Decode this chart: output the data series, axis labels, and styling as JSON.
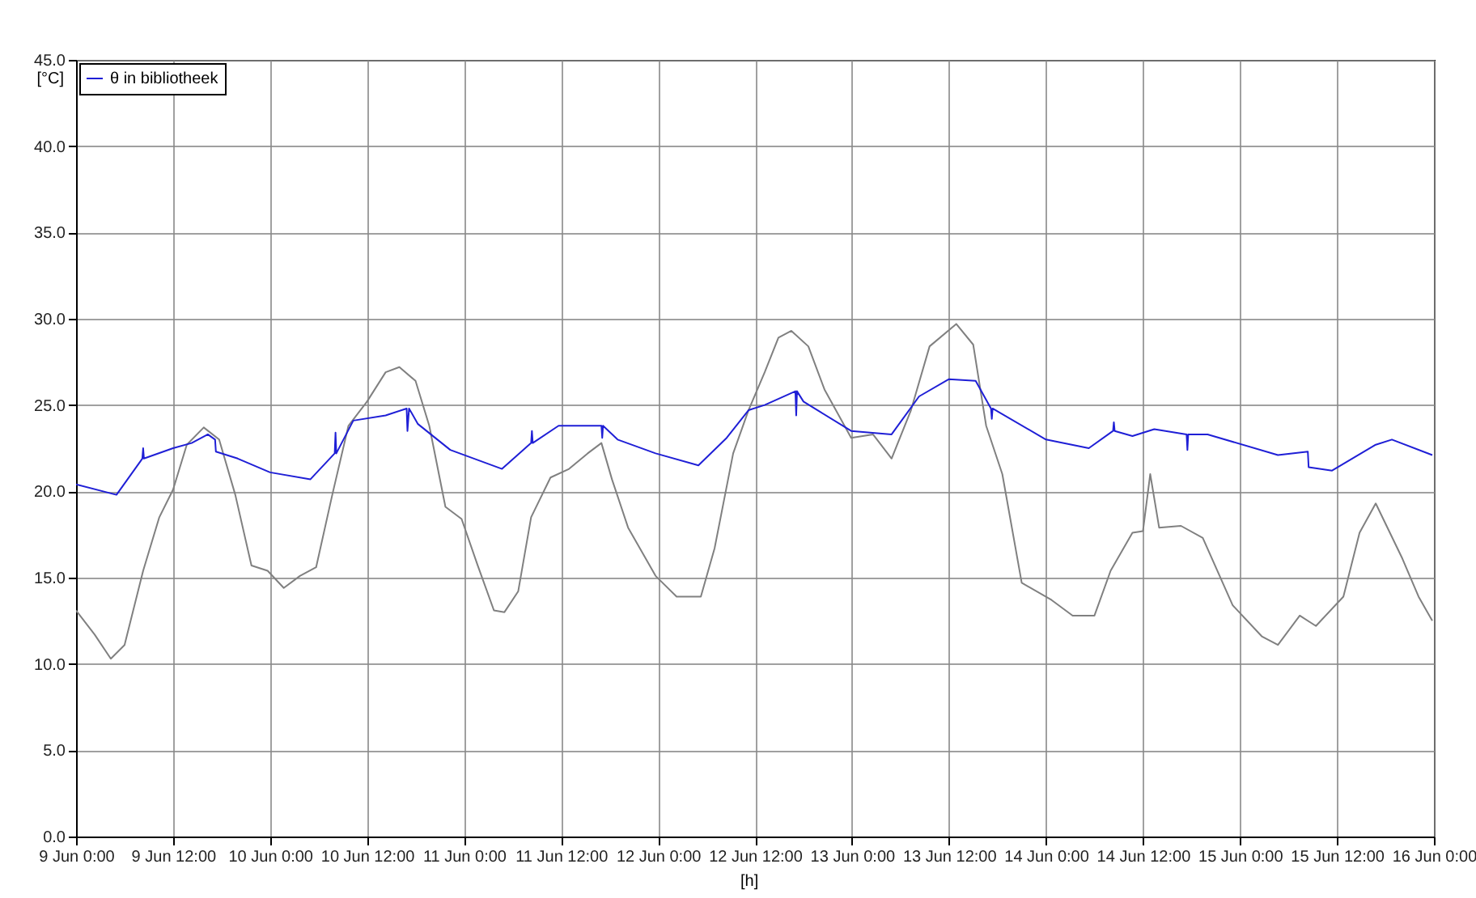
{
  "chart_data": {
    "type": "line",
    "xlabel": "[h]",
    "ylabel": "[°C]",
    "xlim": [
      "--06-09T00:00",
      "--06-16T00:00"
    ],
    "ylim": [
      0,
      45
    ],
    "xticks": [
      {
        "value": "--06-09T00:00",
        "label": "9 Jun 0:00"
      },
      {
        "value": "--06-09T12:00",
        "label": "9 Jun 12:00"
      },
      {
        "value": "--06-10T00:00",
        "label": "10 Jun 0:00"
      },
      {
        "value": "--06-10T12:00",
        "label": "10 Jun 12:00"
      },
      {
        "value": "--06-11T00:00",
        "label": "11 Jun 0:00"
      },
      {
        "value": "--06-11T12:00",
        "label": "11 Jun 12:00"
      },
      {
        "value": "--06-12T00:00",
        "label": "12 Jun 0:00"
      },
      {
        "value": "--06-12T12:00",
        "label": "12 Jun 12:00"
      },
      {
        "value": "--06-13T00:00",
        "label": "13 Jun 0:00"
      },
      {
        "value": "--06-13T12:00",
        "label": "13 Jun 12:00"
      },
      {
        "value": "--06-14T00:00",
        "label": "14 Jun 0:00"
      },
      {
        "value": "--06-14T12:00",
        "label": "14 Jun 12:00"
      },
      {
        "value": "--06-15T00:00",
        "label": "15 Jun 0:00"
      },
      {
        "value": "--06-15T12:00",
        "label": "15 Jun 12:00"
      },
      {
        "value": "--06-16T00:00",
        "label": "16 Jun 0:00"
      }
    ],
    "yticks": [
      {
        "value": 0,
        "label": "0.0"
      },
      {
        "value": 5,
        "label": "5.0"
      },
      {
        "value": 10,
        "label": "10.0"
      },
      {
        "value": 15,
        "label": "15.0"
      },
      {
        "value": 20,
        "label": "20.0"
      },
      {
        "value": 25,
        "label": "25.0"
      },
      {
        "value": 30,
        "label": "30.0"
      },
      {
        "value": 35,
        "label": "35.0"
      },
      {
        "value": 40,
        "label": "40.0"
      },
      {
        "value": 45,
        "label": "45.0"
      }
    ],
    "grid": true,
    "legend": "top left",
    "marker": "none",
    "line_style": "solid",
    "series": [
      {
        "color": "#808080",
        "x": [
          "--06-09T00:00",
          "--06-09T02:18",
          "--06-09T04:18",
          "--06-09T06:00",
          "--06-09T08:18",
          "--06-09T10:18",
          "--06-09T12:00",
          "--06-09T13:42",
          "--06-09T15:48",
          "--06-09T17:42",
          "--06-09T19:42",
          "--06-09T21:42",
          "--06-09T23:42",
          "--06-10T01:42",
          "--06-10T03:42",
          "--06-10T05:42",
          "--06-10T07:42",
          "--06-10T09:42",
          "--06-10T12:00",
          "--06-10T14:18",
          "--06-10T16:00",
          "--06-10T18:00",
          "--06-10T19:42",
          "--06-10T21:42",
          "--06-10T23:42",
          "--06-11T01:42",
          "--06-11T03:42",
          "--06-11T05:00",
          "--06-11T06:42",
          "--06-11T08:18",
          "--06-11T10:42",
          "--06-11T13:00",
          "--06-11T15:18",
          "--06-11T17:00",
          "--06-11T18:18",
          "--06-11T20:18",
          "--06-11T23:42",
          "--06-12T02:18",
          "--06-12T05:18",
          "--06-12T07:00",
          "--06-12T09:18",
          "--06-12T11:12",
          "--06-12T13:12",
          "--06-12T14:54",
          "--06-12T16:30",
          "--06-12T18:36",
          "--06-12T20:36",
          "--06-12T23:54",
          "--06-13T02:36",
          "--06-13T04:54",
          "--06-13T07:18",
          "--06-13T09:36",
          "--06-13T12:54",
          "--06-13T15:00",
          "--06-13T16:36",
          "--06-13T18:36",
          "--06-13T21:00",
          "--06-14T00:42",
          "--06-14T03:18",
          "--06-14T06:00",
          "--06-14T08:00",
          "--06-14T10:42",
          "--06-14T12:00",
          "--06-14T12:54",
          "--06-14T14:00",
          "--06-14T16:42",
          "--06-14T19:24",
          "--06-14T23:06",
          "--06-15T02:42",
          "--06-15T04:42",
          "--06-15T07:24",
          "--06-15T09:24",
          "--06-15T12:48",
          "--06-15T14:48",
          "--06-15T16:48",
          "--06-15T20:06",
          "--06-15T22:06",
          "--06-15T23:48"
        ],
        "values": [
          13.1,
          11.7,
          10.3,
          11.1,
          15.4,
          18.5,
          20.1,
          22.7,
          23.7,
          23.0,
          19.8,
          15.7,
          15.4,
          14.4,
          15.1,
          15.6,
          19.8,
          23.8,
          25.2,
          26.9,
          27.2,
          26.4,
          23.8,
          19.1,
          18.4,
          15.7,
          13.1,
          13.0,
          14.2,
          18.5,
          20.8,
          21.3,
          22.2,
          22.8,
          20.7,
          17.9,
          15.1,
          13.9,
          13.9,
          16.7,
          22.2,
          24.7,
          26.9,
          28.9,
          29.3,
          28.4,
          25.9,
          23.1,
          23.3,
          21.9,
          24.7,
          28.4,
          29.7,
          28.5,
          23.8,
          21.0,
          14.7,
          13.7,
          12.8,
          12.8,
          15.4,
          17.6,
          17.7,
          21.0,
          17.9,
          18.0,
          17.3,
          13.4,
          11.6,
          11.1,
          12.8,
          12.2,
          13.9,
          17.6,
          19.3,
          16.1,
          13.9,
          12.5
        ]
      },
      {
        "name": "θ in bibliotheek",
        "color": "#1f1fd6",
        "x": [
          "--06-09T00:00",
          "--06-09T05:00",
          "--06-09T08:12",
          "--06-09T08:18",
          "--06-09T08:24",
          "--06-09T12:00",
          "--06-09T14:18",
          "--06-09T16:18",
          "--06-09T17:12",
          "--06-09T17:18",
          "--06-09T20:00",
          "--06-10T00:00",
          "--06-10T05:00",
          "--06-10T08:00",
          "--06-10T08:06",
          "--06-10T08:12",
          "--06-10T10:18",
          "--06-10T14:18",
          "--06-10T16:54",
          "--06-10T17:00",
          "--06-10T17:12",
          "--06-10T18:18",
          "--06-10T22:18",
          "--06-11T04:42",
          "--06-11T08:18",
          "--06-11T08:24",
          "--06-11T08:30",
          "--06-11T11:42",
          "--06-11T17:00",
          "--06-11T17:06",
          "--06-11T17:12",
          "--06-11T19:00",
          "--06-11T23:42",
          "--06-12T05:00",
          "--06-12T08:30",
          "--06-12T11:12",
          "--06-12T13:12",
          "--06-12T17:00",
          "--06-12T17:06",
          "--06-12T17:12",
          "--06-12T18:00",
          "--06-12T23:54",
          "--06-13T04:54",
          "--06-13T08:18",
          "--06-13T12:00",
          "--06-13T15:18",
          "--06-13T17:12",
          "--06-13T17:18",
          "--06-13T17:24",
          "--06-14T00:00",
          "--06-14T05:18",
          "--06-14T08:18",
          "--06-14T08:24",
          "--06-14T08:30",
          "--06-14T10:42",
          "--06-14T13:24",
          "--06-14T17:24",
          "--06-14T17:30",
          "--06-14T17:36",
          "--06-14T20:00",
          "--06-15T04:42",
          "--06-15T08:24",
          "--06-15T08:30",
          "--06-15T11:24",
          "--06-15T16:48",
          "--06-15T18:48",
          "--06-15T23:48"
        ],
        "values": [
          20.4,
          19.8,
          21.9,
          22.5,
          21.9,
          22.5,
          22.8,
          23.3,
          23.0,
          22.3,
          21.9,
          21.1,
          20.7,
          22.2,
          23.4,
          22.2,
          24.1,
          24.4,
          24.8,
          23.5,
          24.8,
          23.9,
          22.4,
          21.3,
          22.8,
          23.5,
          22.8,
          23.8,
          23.8,
          23.1,
          23.8,
          23.0,
          22.2,
          21.5,
          23.1,
          24.7,
          25.0,
          25.8,
          24.4,
          25.8,
          25.2,
          23.5,
          23.3,
          25.5,
          26.5,
          26.4,
          24.8,
          24.2,
          24.8,
          23.0,
          22.5,
          23.5,
          24.0,
          23.5,
          23.2,
          23.6,
          23.3,
          22.4,
          23.3,
          23.3,
          22.1,
          22.3,
          21.4,
          21.2,
          22.7,
          23.0,
          22.1
        ]
      }
    ]
  }
}
